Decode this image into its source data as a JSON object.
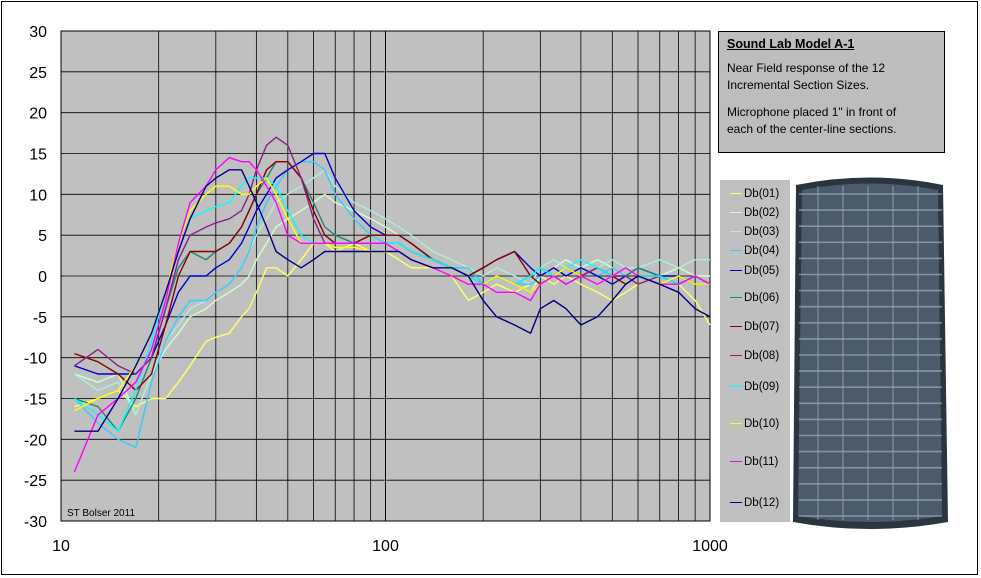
{
  "chart_data": {
    "type": "line",
    "x_scale": "log",
    "xlim": [
      10,
      1000
    ],
    "ylim": [
      -30,
      30
    ],
    "y_ticks": [
      "30",
      "25",
      "20",
      "15",
      "10",
      "5",
      "0",
      "-5",
      "-10",
      "-15",
      "-20",
      "-25",
      "-30"
    ],
    "x_ticks": [
      "10",
      "100",
      "1000"
    ],
    "grid": true,
    "annotation": "ST Bolser 2011",
    "legend_placement": "right",
    "series": [
      {
        "name": "Db(01)",
        "color": "#ffff66",
        "x": [
          11,
          13,
          15,
          17,
          19,
          21,
          23,
          25,
          28,
          30,
          33,
          36,
          38,
          40,
          43,
          46,
          50,
          55,
          60,
          65,
          70,
          80,
          90,
          100,
          110,
          120,
          140,
          160,
          180,
          200,
          220,
          250,
          280,
          300,
          330,
          360,
          400,
          450,
          500,
          550,
          600,
          700,
          800,
          900,
          1000
        ],
        "y": [
          -16,
          -15,
          -14,
          -16,
          -15,
          -15,
          -13,
          -11,
          -8,
          -7.5,
          -7,
          -5,
          -4,
          -2,
          1,
          1,
          0,
          2,
          4,
          4,
          3,
          4,
          3,
          3,
          2,
          1,
          1,
          0,
          -3,
          -2,
          -1,
          -2,
          -1,
          0,
          -1,
          0,
          -1,
          -2,
          -3,
          -2,
          -1,
          0,
          -1,
          -3,
          -6
        ]
      },
      {
        "name": "Db(02)",
        "color": "#ccffcc",
        "x": [
          11,
          13,
          15,
          17,
          19,
          21,
          23,
          25,
          28,
          30,
          33,
          36,
          38,
          40,
          43,
          46,
          50,
          55,
          60,
          65,
          70,
          80,
          90,
          100,
          110,
          120,
          140,
          160,
          180,
          200,
          220,
          250,
          280,
          300,
          330,
          360,
          400,
          450,
          500,
          550,
          600,
          700,
          800,
          900,
          1000
        ],
        "y": [
          -12,
          -13,
          -12,
          -17,
          -12,
          -9,
          -7,
          -5,
          -4,
          -3,
          -2,
          -1,
          0,
          2,
          4,
          6,
          7,
          8,
          9,
          10,
          9,
          8,
          7,
          6,
          5,
          4,
          2,
          1,
          0,
          -1,
          0,
          -1,
          -2,
          0,
          1,
          2,
          1,
          2,
          1,
          0,
          1,
          0,
          1,
          0,
          0
        ]
      },
      {
        "name": "Db(03)",
        "color": "#aaeedd",
        "x": [
          11,
          13,
          15,
          17,
          19,
          21,
          23,
          25,
          28,
          30,
          33,
          36,
          38,
          40,
          43,
          46,
          50,
          55,
          60,
          65,
          70,
          80,
          90,
          100,
          110,
          120,
          140,
          160,
          180,
          200,
          220,
          250,
          280,
          300,
          330,
          360,
          400,
          450,
          500,
          550,
          600,
          700,
          800,
          900,
          1000
        ],
        "y": [
          -12,
          -14,
          -13,
          -17,
          -12,
          -8,
          -6,
          -4,
          -3,
          -2,
          -1,
          1,
          3,
          5,
          7,
          9,
          10,
          11,
          12,
          13,
          11,
          9,
          8,
          7,
          6,
          5,
          3,
          2,
          1,
          0,
          1,
          0,
          -1,
          1,
          2,
          1,
          2,
          1,
          2,
          1,
          1,
          2,
          1,
          2,
          2
        ]
      },
      {
        "name": "Db(04)",
        "color": "#33ccff",
        "x": [
          11,
          13,
          15,
          17,
          19,
          21,
          23,
          25,
          28,
          30,
          33,
          36,
          38,
          40,
          43,
          46,
          50,
          55,
          60,
          65,
          70,
          80,
          90,
          100,
          110,
          120,
          140,
          160,
          180,
          200,
          220,
          250,
          280,
          300,
          330,
          360,
          400,
          450,
          500,
          550,
          600,
          700,
          800,
          900,
          1000
        ],
        "y": [
          -15,
          -18,
          -20,
          -21,
          -13,
          -8,
          -5,
          -3,
          -3,
          -2,
          -1,
          1,
          3,
          6,
          9,
          11,
          13,
          14,
          14,
          13,
          10,
          7,
          5,
          4,
          4,
          3,
          2,
          1,
          1,
          -1,
          0,
          -1,
          -1,
          0,
          1,
          0,
          1,
          0,
          1,
          0,
          1,
          0,
          -1,
          0,
          -1
        ]
      },
      {
        "name": "Db(05)",
        "color": "#0000cc",
        "x": [
          11,
          13,
          15,
          17,
          19,
          21,
          23,
          25,
          28,
          30,
          33,
          36,
          38,
          40,
          43,
          46,
          50,
          55,
          60,
          65,
          70,
          80,
          90,
          100,
          110,
          120,
          140,
          160,
          180,
          200,
          220,
          250,
          280,
          300,
          330,
          360,
          400,
          450,
          500,
          550,
          600,
          700,
          800,
          900,
          1000
        ],
        "y": [
          -11,
          -12,
          -12,
          -12,
          -10,
          -6,
          -2,
          0,
          0,
          1,
          2,
          4,
          6,
          8,
          10,
          12,
          13,
          14,
          15,
          15,
          12,
          8,
          6,
          5,
          5,
          4,
          2,
          1,
          0,
          1,
          2,
          3,
          1,
          0,
          1,
          0,
          1,
          0,
          -1,
          0,
          1,
          0,
          0,
          -1,
          -1
        ]
      },
      {
        "name": "Db(06)",
        "color": "#228877",
        "x": [
          11,
          13,
          15,
          17,
          19,
          21,
          23,
          25,
          28,
          30,
          33,
          36,
          38,
          40,
          43,
          46,
          50,
          55,
          60,
          65,
          70,
          80,
          90,
          100,
          110,
          120,
          140,
          160,
          180,
          200,
          220,
          250,
          280,
          300,
          330,
          360,
          400,
          450,
          500,
          550,
          600,
          700,
          800,
          900,
          1000
        ],
        "y": [
          -15,
          -16,
          -19,
          -15,
          -10,
          -4,
          1,
          3,
          2,
          3,
          4,
          6,
          8,
          10,
          12,
          14,
          14,
          12,
          9,
          6,
          5,
          4,
          5,
          5,
          5,
          4,
          2,
          1,
          0,
          -1,
          0,
          -1,
          0,
          1,
          0,
          1,
          0,
          1,
          0,
          0,
          1,
          0,
          -1,
          0,
          -1
        ]
      },
      {
        "name": "Db(07)",
        "color": "#880000",
        "x": [
          11,
          13,
          15,
          17,
          19,
          21,
          23,
          25,
          28,
          30,
          33,
          36,
          38,
          40,
          43,
          46,
          50,
          55,
          60,
          65,
          70,
          80,
          90,
          100,
          110,
          120,
          140,
          160,
          180,
          200,
          220,
          250,
          280,
          300,
          330,
          360,
          400,
          450,
          500,
          550,
          600,
          700,
          800,
          900,
          1000
        ],
        "y": [
          -9.5,
          -10.5,
          -12,
          -14,
          -12,
          -6,
          0,
          3,
          3,
          3,
          4,
          6,
          8,
          10,
          13,
          14,
          14,
          12,
          8,
          5,
          4,
          4,
          5,
          5,
          5,
          4,
          2,
          1,
          0,
          1,
          2,
          3,
          0,
          -1,
          0,
          1,
          0,
          1,
          0,
          -1,
          0,
          0,
          -1,
          0,
          -1
        ]
      },
      {
        "name": "Db(08)",
        "color": "#882288",
        "x": [
          11,
          13,
          15,
          17,
          19,
          21,
          23,
          25,
          28,
          30,
          33,
          36,
          38,
          40,
          43,
          46,
          50,
          55,
          60,
          65,
          70,
          80,
          90,
          100,
          110,
          120,
          140,
          160,
          180,
          200,
          220,
          250,
          280,
          300,
          330,
          360,
          400,
          450,
          500,
          550,
          600,
          700,
          800,
          900,
          1000
        ],
        "y": [
          -11,
          -9,
          -11,
          -12,
          -10,
          -4,
          2,
          5,
          6,
          6.5,
          7,
          8,
          10,
          13,
          16,
          17,
          16,
          12,
          7,
          4,
          4,
          4,
          4,
          4,
          4,
          3,
          2,
          1,
          0,
          -1,
          0,
          -1,
          -2,
          -1,
          0,
          -1,
          0,
          1,
          0,
          0,
          -1,
          0,
          -1,
          0,
          -1
        ]
      },
      {
        "name": "Db(09)",
        "color": "#00ffff",
        "x": [
          11,
          13,
          15,
          17,
          19,
          21,
          23,
          25,
          28,
          30,
          33,
          36,
          38,
          40,
          43,
          46,
          50,
          55,
          60,
          65,
          70,
          80,
          90,
          100,
          110,
          120,
          140,
          160,
          180,
          200,
          220,
          250,
          280,
          300,
          330,
          360,
          400,
          450,
          500,
          550,
          600,
          700,
          800,
          900,
          1000
        ],
        "y": [
          -15,
          -17,
          -19,
          -14,
          -8,
          -2,
          3,
          7,
          8,
          8.5,
          9,
          11,
          12,
          12,
          12,
          11,
          8,
          5,
          4,
          4,
          4,
          4,
          4,
          4,
          4,
          3,
          2,
          1,
          0,
          -1,
          0,
          -1,
          0,
          1,
          0,
          1,
          2,
          1,
          0,
          1,
          0,
          0,
          -1,
          0,
          -1
        ]
      },
      {
        "name": "Db(10)",
        "color": "#ffff00",
        "x": [
          11,
          13,
          15,
          17,
          19,
          21,
          23,
          25,
          28,
          30,
          33,
          36,
          38,
          40,
          43,
          46,
          50,
          55,
          60,
          65,
          70,
          80,
          90,
          100,
          110,
          120,
          140,
          160,
          180,
          200,
          220,
          250,
          280,
          300,
          330,
          360,
          400,
          450,
          500,
          550,
          600,
          700,
          800,
          900,
          1000
        ],
        "y": [
          -16.5,
          -15,
          -14,
          -11,
          -7,
          -2,
          4,
          8,
          10,
          11,
          11,
          10,
          10,
          11,
          12,
          10,
          7,
          4,
          4,
          4,
          3.5,
          3.5,
          3,
          3,
          3,
          2,
          1,
          0,
          -1,
          -1,
          0,
          -1,
          -2,
          -1,
          0,
          1,
          0,
          -1,
          0,
          1,
          0,
          -1,
          0,
          -1,
          -1
        ]
      },
      {
        "name": "Db(11)",
        "color": "#ff00ff",
        "x": [
          11,
          13,
          15,
          17,
          19,
          21,
          23,
          25,
          28,
          30,
          33,
          36,
          38,
          40,
          43,
          46,
          50,
          55,
          60,
          65,
          70,
          80,
          90,
          100,
          110,
          120,
          140,
          160,
          180,
          200,
          220,
          250,
          280,
          300,
          330,
          360,
          400,
          450,
          500,
          550,
          600,
          700,
          800,
          900,
          1000
        ],
        "y": [
          -24,
          -17,
          -15,
          -13,
          -9,
          -3,
          4,
          9,
          11,
          13,
          14.5,
          14,
          14,
          13,
          11,
          9,
          5,
          4,
          4,
          4,
          4,
          4,
          4,
          4,
          3,
          2,
          1,
          0,
          -1,
          -1,
          -2,
          -2,
          -3,
          -1,
          0,
          -1,
          0,
          -1,
          0,
          1,
          0,
          -1,
          -1,
          0,
          -1
        ]
      },
      {
        "name": "Db(12)",
        "color": "#000080",
        "x": [
          11,
          13,
          15,
          17,
          19,
          21,
          23,
          25,
          28,
          30,
          33,
          36,
          38,
          40,
          43,
          46,
          50,
          55,
          60,
          65,
          70,
          80,
          90,
          100,
          110,
          120,
          140,
          160,
          180,
          200,
          220,
          250,
          280,
          300,
          330,
          360,
          400,
          450,
          500,
          550,
          600,
          700,
          800,
          900,
          1000
        ],
        "y": [
          -19,
          -19,
          -15,
          -11,
          -7,
          -2,
          3,
          7,
          11,
          12,
          13,
          13,
          11,
          9,
          6,
          3,
          2,
          1,
          2,
          3,
          3,
          3,
          3,
          3,
          3,
          2,
          1,
          1,
          0,
          -3,
          -5,
          -6,
          -7,
          -4,
          -3,
          -4,
          -6,
          -5,
          -3,
          -1,
          0,
          -1,
          -2,
          -4,
          -5
        ]
      }
    ]
  },
  "info": {
    "title": "Sound Lab Model A-1",
    "line1": "Near Field response of the 12",
    "line2": "Incremental Section Sizes.",
    "line3": "Microphone placed  1\" in front of",
    "line4": "each of the  center-line sections."
  },
  "photo": {
    "icon": "speaker-panel-photo",
    "frame_color": "#2a3540",
    "panel_color": "#4b5b6b",
    "grid_color": "#9aa8b4"
  }
}
